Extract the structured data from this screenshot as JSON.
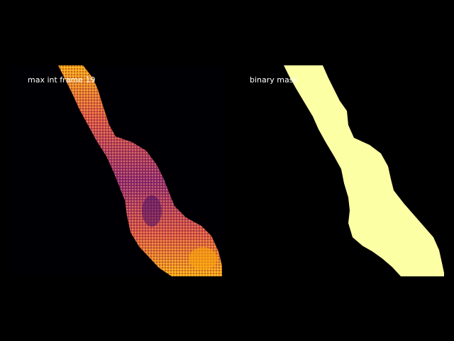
{
  "panels": {
    "left": {
      "label": "max int frame 19",
      "colormap": "inferno",
      "colors": {
        "background": "#000004",
        "low": "#420a68",
        "mid": "#932667",
        "high": "#dd513a",
        "peak": "#fca50a",
        "hot": "#fcffa4"
      }
    },
    "right": {
      "label": "binary mask",
      "colors": {
        "background": "#000000",
        "mask": "#fcffa4"
      }
    }
  }
}
